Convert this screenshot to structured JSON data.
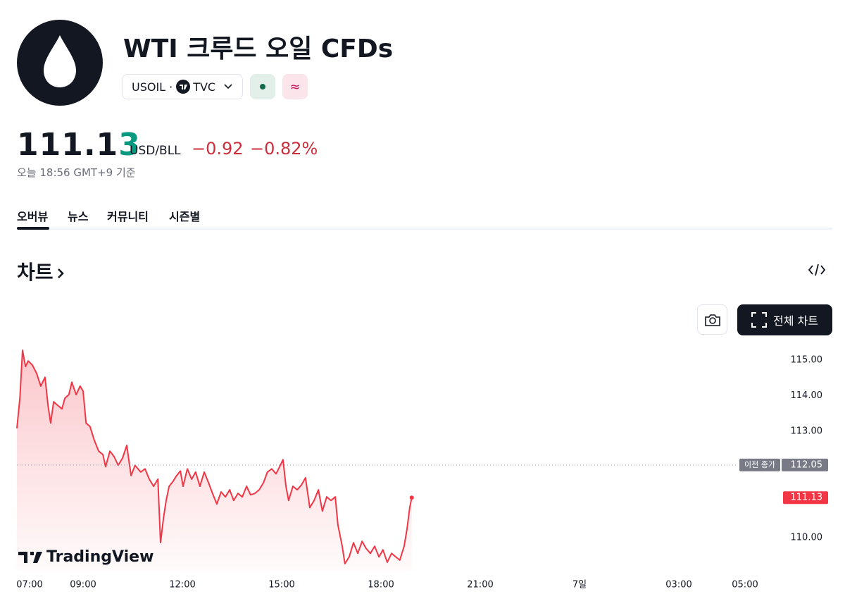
{
  "header": {
    "title": "WTI 크루드 오일 CFDs",
    "symbol": "USOIL",
    "exchange": "TVC",
    "badge_pink": "≈"
  },
  "quote": {
    "price_main": "111.1",
    "price_last": "3",
    "unit": "USD/BLL",
    "change": "−0.92",
    "change_percent": "−0.82%",
    "timestamp": "오늘 18:56 GMT+9 기준"
  },
  "tabs": [
    "오버뷰",
    "뉴스",
    "커뮤니티",
    "시즌별"
  ],
  "section_title": "차트",
  "full_chart_button": "전체 차트",
  "chart_data": {
    "type": "line",
    "watermark": "TradingView",
    "color": "#f23645",
    "x": [
      7.0,
      7.09,
      7.17,
      7.26,
      7.34,
      7.47,
      7.6,
      7.72,
      7.85,
      7.94,
      8.02,
      8.11,
      8.23,
      8.36,
      8.45,
      8.57,
      8.66,
      8.79,
      8.91,
      9.0,
      9.09,
      9.21,
      9.34,
      9.47,
      9.6,
      9.68,
      9.81,
      9.94,
      10.06,
      10.19,
      10.32,
      10.45,
      10.57,
      10.74,
      10.87,
      11.0,
      11.13,
      11.26,
      11.34,
      11.43,
      11.51,
      11.6,
      11.72,
      11.81,
      11.94,
      12.02,
      12.15,
      12.28,
      12.4,
      12.53,
      12.66,
      12.79,
      12.91,
      13.04,
      13.17,
      13.3,
      13.43,
      13.55,
      13.68,
      13.81,
      13.94,
      14.06,
      14.19,
      14.32,
      14.45,
      14.57,
      14.7,
      14.83,
      14.96,
      15.04,
      15.13,
      15.21,
      15.34,
      15.47,
      15.6,
      15.72,
      15.85,
      15.98,
      16.11,
      16.23,
      16.36,
      16.49,
      16.62,
      16.7,
      16.83,
      16.91,
      17.04,
      17.17,
      17.3,
      17.43,
      17.55,
      17.68,
      17.81,
      17.94,
      18.06,
      18.19,
      18.32,
      18.45,
      18.57,
      18.7,
      18.79,
      18.87,
      18.93
    ],
    "values": [
      113.08,
      113.93,
      115.28,
      114.82,
      114.98,
      114.86,
      114.62,
      114.27,
      114.52,
      113.73,
      113.23,
      113.83,
      113.73,
      113.63,
      113.93,
      114.03,
      114.38,
      114.03,
      114.27,
      114.13,
      113.23,
      113.13,
      112.74,
      112.44,
      112.34,
      112.0,
      112.44,
      112.28,
      112.04,
      112.24,
      112.6,
      111.75,
      112.04,
      111.85,
      111.94,
      111.65,
      111.45,
      111.65,
      109.86,
      110.56,
      111.05,
      111.45,
      111.59,
      111.73,
      111.88,
      111.45,
      111.94,
      111.65,
      111.85,
      111.45,
      111.85,
      111.55,
      111.25,
      110.95,
      111.29,
      111.15,
      111.35,
      111.05,
      111.25,
      111.15,
      111.45,
      111.21,
      111.25,
      111.35,
      111.55,
      111.85,
      111.94,
      111.8,
      112.04,
      112.2,
      111.45,
      111.05,
      111.45,
      111.35,
      111.49,
      111.69,
      110.85,
      111.05,
      111.35,
      110.75,
      111.15,
      111.05,
      111.15,
      110.36,
      109.76,
      109.27,
      109.46,
      109.86,
      109.56,
      109.9,
      109.7,
      109.56,
      109.76,
      109.46,
      109.66,
      109.31,
      109.56,
      109.46,
      109.37,
      109.76,
      110.26,
      110.85,
      111.13
    ],
    "xlim": [
      7,
      29.4
    ],
    "xticks": [
      {
        "value": 7,
        "label": "07:00"
      },
      {
        "value": 9,
        "label": "09:00"
      },
      {
        "value": 12,
        "label": "12:00"
      },
      {
        "value": 15,
        "label": "15:00"
      },
      {
        "value": 18,
        "label": "18:00"
      },
      {
        "value": 21,
        "label": "21:00"
      },
      {
        "value": 24,
        "label": "7일"
      },
      {
        "value": 27,
        "label": "03:00"
      },
      {
        "value": 29,
        "label": "05:00"
      }
    ],
    "ylim": [
      109.07,
      115.42
    ],
    "yticks": [
      {
        "value": 110,
        "label": "110.00"
      },
      {
        "value": 113,
        "label": "113.00"
      },
      {
        "value": 114,
        "label": "114.00"
      },
      {
        "value": 115,
        "label": "115.00"
      }
    ],
    "previous_close": {
      "caption": "이전 종가",
      "value": 112.05
    },
    "last_price": 111.13
  }
}
